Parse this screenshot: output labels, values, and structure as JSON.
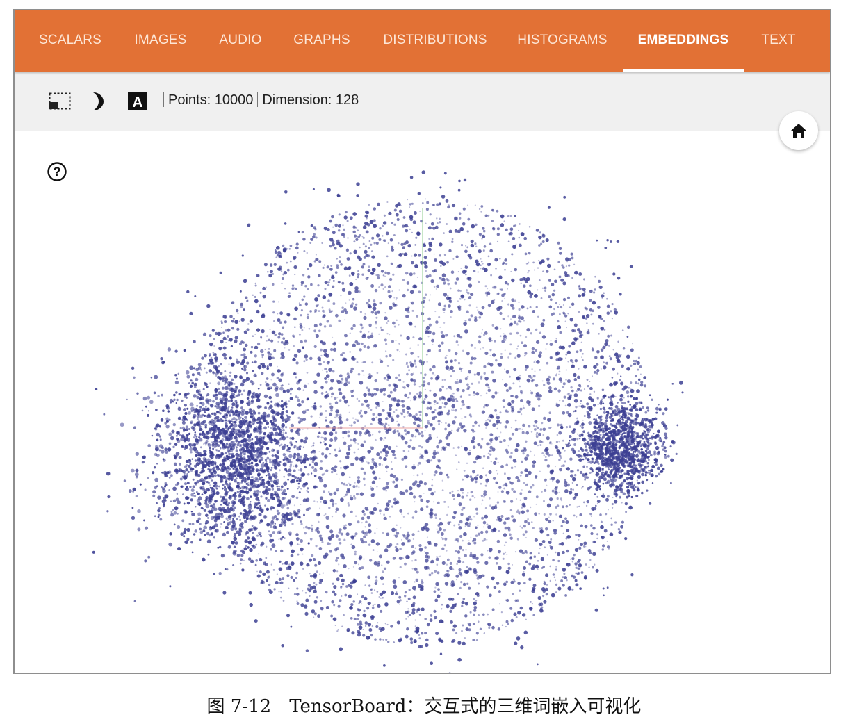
{
  "nav": {
    "tabs": [
      {
        "label": "SCALARS",
        "active": false
      },
      {
        "label": "IMAGES",
        "active": false
      },
      {
        "label": "AUDIO",
        "active": false
      },
      {
        "label": "GRAPHS",
        "active": false
      },
      {
        "label": "DISTRIBUTIONS",
        "active": false
      },
      {
        "label": "HISTOGRAMS",
        "active": false
      },
      {
        "label": "EMBEDDINGS",
        "active": true
      },
      {
        "label": "TEXT",
        "active": false
      }
    ]
  },
  "toolbar": {
    "icons": [
      "selection-box-icon",
      "night-mode-icon",
      "label-toggle-icon"
    ],
    "points_text": "Points: 10000",
    "dimension_text": "Dimension: 128",
    "label_glyph": "A"
  },
  "buttons": {
    "home_icon": "home-icon",
    "help_icon": "help-icon",
    "help_glyph": "?"
  },
  "projection": {
    "point_color": "#3c3f93",
    "x_axis_color": "#e8a0a0",
    "y_axis_color": "#8fcc8f"
  },
  "colors": {
    "nav_bg": "#e27135",
    "toolbar_bg": "#f0f0f0"
  },
  "caption": "图 7-12　TensorBoard：交互式的三维词嵌入可视化"
}
